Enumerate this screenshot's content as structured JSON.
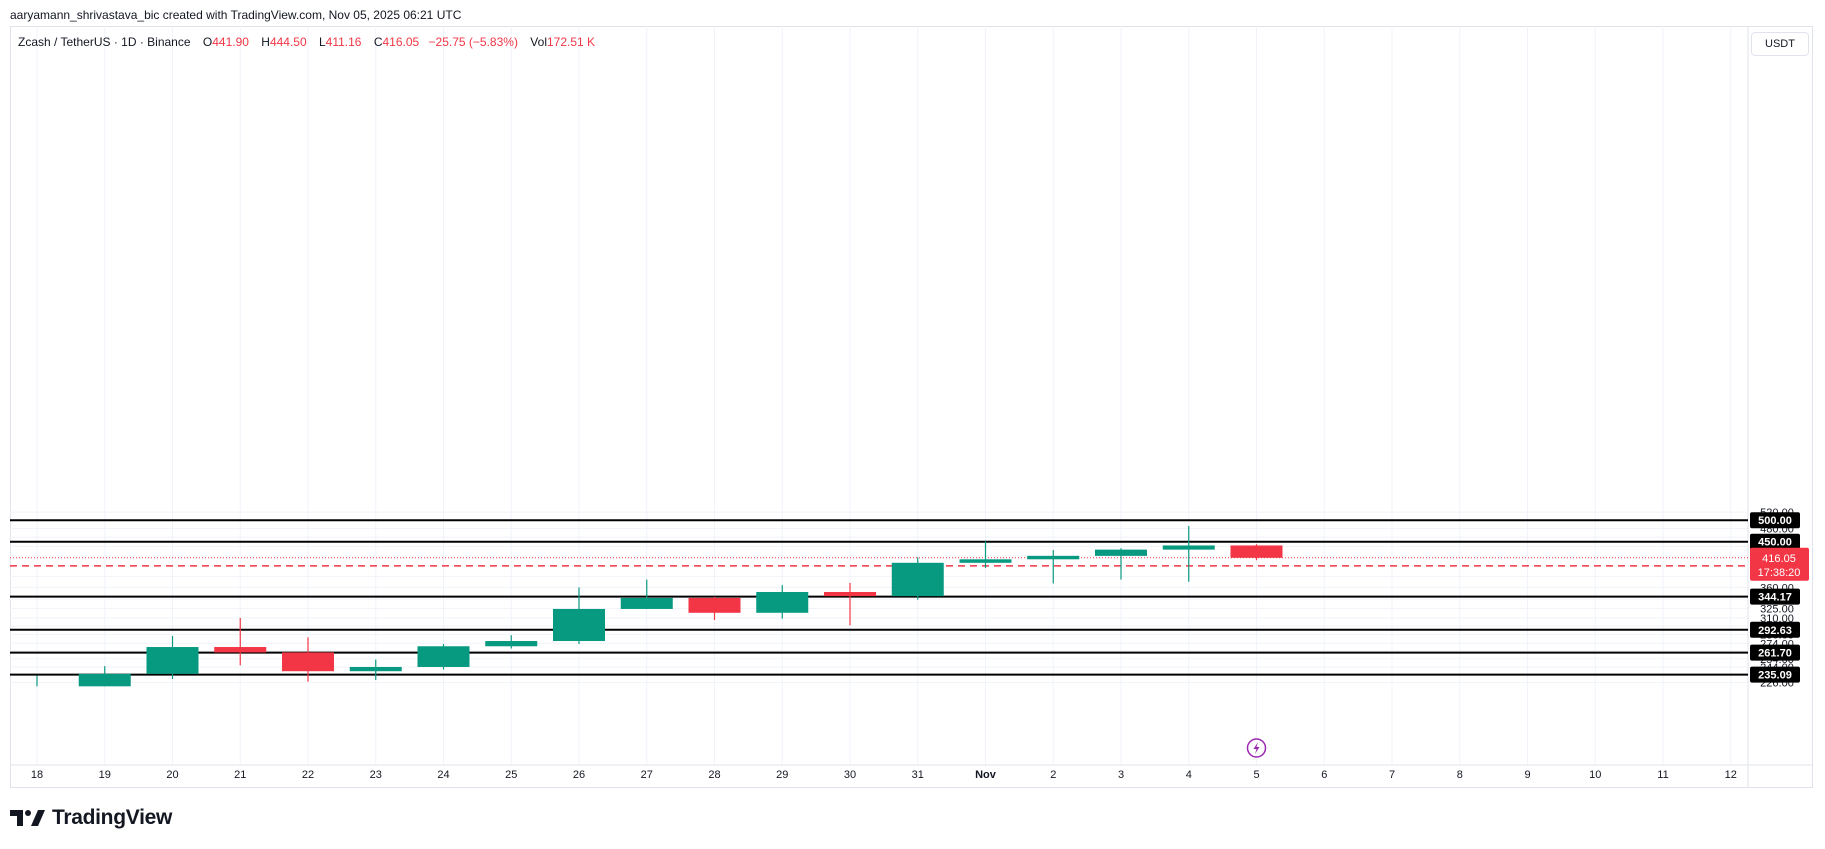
{
  "header": {
    "credit": "aaryamann_shrivastava_bic created with TradingView.com, Nov 05, 2025 06:21 UTC"
  },
  "legend": {
    "symbol": "Zcash / TetherUS · 1D · Binance",
    "open_label": "O",
    "open": "441.90",
    "high_label": "H",
    "high": "444.50",
    "low_label": "L",
    "low": "411.16",
    "close_label": "C",
    "close": "416.05",
    "change": "−25.75 (−5.83%)",
    "vol_label": "Vol",
    "volume": "172.51 K"
  },
  "currency_button": "USDT",
  "branding": {
    "logo_text": "TradingView"
  },
  "colors": {
    "up": "#089981",
    "down": "#f23645",
    "grid": "#f0f3fa",
    "level_line": "#000000",
    "last_price": "#f23645",
    "text": "#131722"
  },
  "chart_data": {
    "type": "candlestick",
    "title": "Zcash / TetherUS · 1D · Binance",
    "currency": "USDT",
    "x_labels": [
      "18",
      "19",
      "20",
      "21",
      "22",
      "23",
      "24",
      "25",
      "26",
      "27",
      "28",
      "29",
      "30",
      "31",
      "Nov",
      "2",
      "3",
      "4",
      "5",
      "6",
      "7",
      "8",
      "9",
      "10",
      "11",
      "12"
    ],
    "y_ticks": [
      "520.00",
      "480.00",
      "460.00",
      "440.00",
      "420.00",
      "380.00",
      "360.00",
      "340.00",
      "325.00",
      "310.00",
      "298.00",
      "286.00",
      "274.00",
      "264.00",
      "254.00",
      "244.00",
      "226.00"
    ],
    "y_tick_values": [
      520,
      480,
      460,
      440,
      420,
      380,
      360,
      340,
      325,
      310,
      298,
      286,
      274,
      264,
      254,
      244,
      226
    ],
    "scale": "log",
    "candles": [
      {
        "date": "19",
        "open": 222,
        "high": 245,
        "low": 222,
        "close": 236,
        "partial": true
      },
      {
        "date": "20",
        "open": 236,
        "high": 284,
        "low": 230,
        "close": 269
      },
      {
        "date": "21",
        "open": 269,
        "high": 310,
        "low": 246,
        "close": 262
      },
      {
        "date": "22",
        "open": 262,
        "high": 282,
        "low": 227,
        "close": 239
      },
      {
        "date": "23",
        "open": 239,
        "high": 253,
        "low": 229,
        "close": 244
      },
      {
        "date": "24",
        "open": 244,
        "high": 273,
        "low": 241,
        "close": 270
      },
      {
        "date": "25",
        "open": 270,
        "high": 285,
        "low": 267,
        "close": 277
      },
      {
        "date": "26",
        "open": 277,
        "high": 360,
        "low": 273,
        "close": 324
      },
      {
        "date": "27",
        "open": 324,
        "high": 374,
        "low": 324,
        "close": 342
      },
      {
        "date": "28",
        "open": 342,
        "high": 344,
        "low": 307,
        "close": 318
      },
      {
        "date": "29",
        "open": 318,
        "high": 364,
        "low": 309,
        "close": 352
      },
      {
        "date": "30",
        "open": 352,
        "high": 368,
        "low": 299,
        "close": 345
      },
      {
        "date": "31",
        "open": 345,
        "high": 417,
        "low": 339,
        "close": 406
      },
      {
        "date": "Nov",
        "open": 406,
        "high": 451,
        "low": 396,
        "close": 413
      },
      {
        "date": "2",
        "open": 413,
        "high": 432,
        "low": 367,
        "close": 420
      },
      {
        "date": "3",
        "open": 420,
        "high": 436,
        "low": 374,
        "close": 433
      },
      {
        "date": "4",
        "open": 433,
        "high": 486,
        "low": 370,
        "close": 441.9
      },
      {
        "date": "5",
        "open": 441.9,
        "high": 444.5,
        "low": 411.16,
        "close": 416.05
      }
    ],
    "horizontal_levels": [
      {
        "value": 500.0,
        "label": "500.00",
        "style": "solid"
      },
      {
        "value": 450.0,
        "label": "450.00",
        "style": "solid"
      },
      {
        "value": 400.0,
        "label": "400.00",
        "style": "dashed-red"
      },
      {
        "value": 344.17,
        "label": "344.17",
        "style": "solid"
      },
      {
        "value": 292.63,
        "label": "292.63",
        "style": "solid"
      },
      {
        "value": 261.7,
        "label": "261.70",
        "style": "solid"
      },
      {
        "value": 235.09,
        "label": "235.09",
        "style": "solid"
      }
    ],
    "last_price": {
      "value": 416.05,
      "label": "416.05",
      "countdown": "17:38:20"
    },
    "y_range": [
      222,
      540
    ],
    "grid": true
  }
}
